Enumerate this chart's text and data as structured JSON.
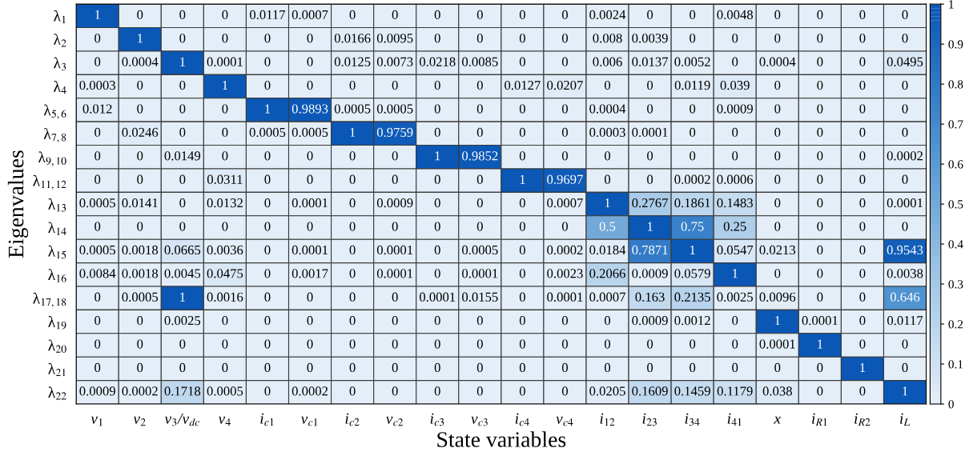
{
  "chart_data": {
    "type": "heatmap",
    "xlabel": "State variables",
    "ylabel": "Eigenvalues",
    "categories": [
      "v$_{1}$",
      "v$_{2}$",
      "v$_{3}$/v$_{dc}$",
      "v$_{4}$",
      "i$_{c1}$",
      "v$_{c1}$",
      "i$_{c2}$",
      "v$_{c2}$",
      "i$_{c3}$",
      "v$_{c3}$",
      "i$_{c4}$",
      "v$_{c4}$",
      "i$_{12}$",
      "i$_{23}$",
      "i$_{34}$",
      "i$_{41}$",
      "x",
      "i$_{R1}$",
      "i$_{R2}$",
      "i$_{L}$"
    ],
    "y_categories": [
      "λ$_{1}$",
      "λ$_{2}$",
      "λ$_{3}$",
      "λ$_{4}$",
      "λ$_{5,6}$",
      "λ$_{7,8}$",
      "λ$_{9,10}$",
      "λ$_{11,12}$",
      "λ$_{13}$",
      "λ$_{14}$",
      "λ$_{15}$",
      "λ$_{16}$",
      "λ$_{17,18}$",
      "λ$_{19}$",
      "λ$_{20}$",
      "λ$_{21}$",
      "λ$_{22}$"
    ],
    "cells": [
      [
        1,
        0,
        0,
        0,
        0.0117,
        0.0007,
        0,
        0,
        0,
        0,
        0,
        0,
        0.0024,
        0,
        0,
        0.0048,
        0,
        0,
        0,
        0
      ],
      [
        0,
        1,
        0,
        0,
        0,
        0,
        0.0166,
        0.0095,
        0,
        0,
        0,
        0,
        0.008,
        0.0039,
        0,
        0,
        0,
        0,
        0,
        0
      ],
      [
        0,
        0.0004,
        1,
        0.0001,
        0,
        0,
        0.0125,
        0.0073,
        0.0218,
        0.0085,
        0,
        0,
        0.006,
        0.0137,
        0.0052,
        0,
        0.0004,
        0,
        0,
        0.0495
      ],
      [
        0.0003,
        0,
        0,
        1,
        0,
        0,
        0,
        0,
        0,
        0,
        0.0127,
        0.0207,
        0,
        0,
        0.0119,
        0.039,
        0,
        0,
        0,
        0
      ],
      [
        0.012,
        0,
        0,
        0,
        1,
        0.9893,
        0.0005,
        0.0005,
        0,
        0,
        0,
        0,
        0.0004,
        0,
        0,
        0.0009,
        0,
        0,
        0,
        0
      ],
      [
        0,
        0.0246,
        0,
        0,
        0.0005,
        0.0005,
        1,
        0.9759,
        0,
        0,
        0,
        0,
        0.0003,
        0.0001,
        0,
        0,
        0,
        0,
        0,
        0
      ],
      [
        0,
        0,
        0.0149,
        0,
        0,
        0,
        0,
        0,
        1,
        0.9852,
        0,
        0,
        0,
        0,
        0,
        0,
        0,
        0,
        0,
        0.0002
      ],
      [
        0,
        0,
        0,
        0.0311,
        0,
        0,
        0,
        0,
        0,
        0,
        1,
        0.9697,
        0,
        0,
        0.0002,
        0.0006,
        0,
        0,
        0,
        0
      ],
      [
        0.0005,
        0.0141,
        0,
        0.0132,
        0,
        0.0001,
        0,
        0.0009,
        0,
        0,
        0,
        0.0007,
        1,
        0.2767,
        0.1861,
        0.1483,
        0,
        0,
        0,
        0.0001
      ],
      [
        0,
        0,
        0,
        0,
        0,
        0,
        0,
        0,
        0,
        0,
        0,
        0,
        0.5,
        1,
        0.75,
        0.25,
        0,
        0,
        0,
        0
      ],
      [
        0.0005,
        0.0018,
        0.0665,
        0.0036,
        0,
        0.0001,
        0,
        0.0001,
        0,
        0.0005,
        0,
        0.0002,
        0.0184,
        0.7871,
        1,
        0.0547,
        0.0213,
        0,
        0,
        0.9543
      ],
      [
        0.0084,
        0.0018,
        0.0045,
        0.0475,
        0,
        0.0017,
        0,
        0.0001,
        0,
        0.0001,
        0,
        0.0023,
        0.2066,
        0.0009,
        0.0579,
        1,
        0,
        0,
        0,
        0.0038
      ],
      [
        0,
        0.0005,
        1,
        0.0016,
        0,
        0,
        0,
        0,
        0.0001,
        0.0155,
        0,
        0.0001,
        0.0007,
        0.163,
        0.2135,
        0.0025,
        0.0096,
        0,
        0,
        0.646
      ],
      [
        0,
        0,
        0.0025,
        0,
        0,
        0,
        0,
        0,
        0,
        0,
        0,
        0,
        0,
        0.0009,
        0.0012,
        0,
        1,
        0.0001,
        0,
        0.0117
      ],
      [
        0,
        0,
        0,
        0,
        0,
        0,
        0,
        0,
        0,
        0,
        0,
        0,
        0,
        0,
        0,
        0,
        0.0001,
        1,
        0,
        0
      ],
      [
        0,
        0,
        0,
        0,
        0,
        0,
        0,
        0,
        0,
        0,
        0,
        0,
        0,
        0,
        0,
        0,
        0,
        0,
        1,
        0
      ],
      [
        0.0009,
        0.0002,
        0.1718,
        0.0005,
        0,
        0.0002,
        0,
        0,
        0,
        0,
        0,
        0,
        0.0205,
        0.1609,
        0.1459,
        0.1179,
        0.038,
        0,
        0,
        1
      ]
    ],
    "data_labels": true,
    "clim": [
      0,
      1
    ],
    "cticks": [
      0,
      0.1,
      0.2,
      0.3,
      0.4,
      0.5,
      0.6,
      0.7,
      0.8,
      0.9,
      1
    ]
  }
}
